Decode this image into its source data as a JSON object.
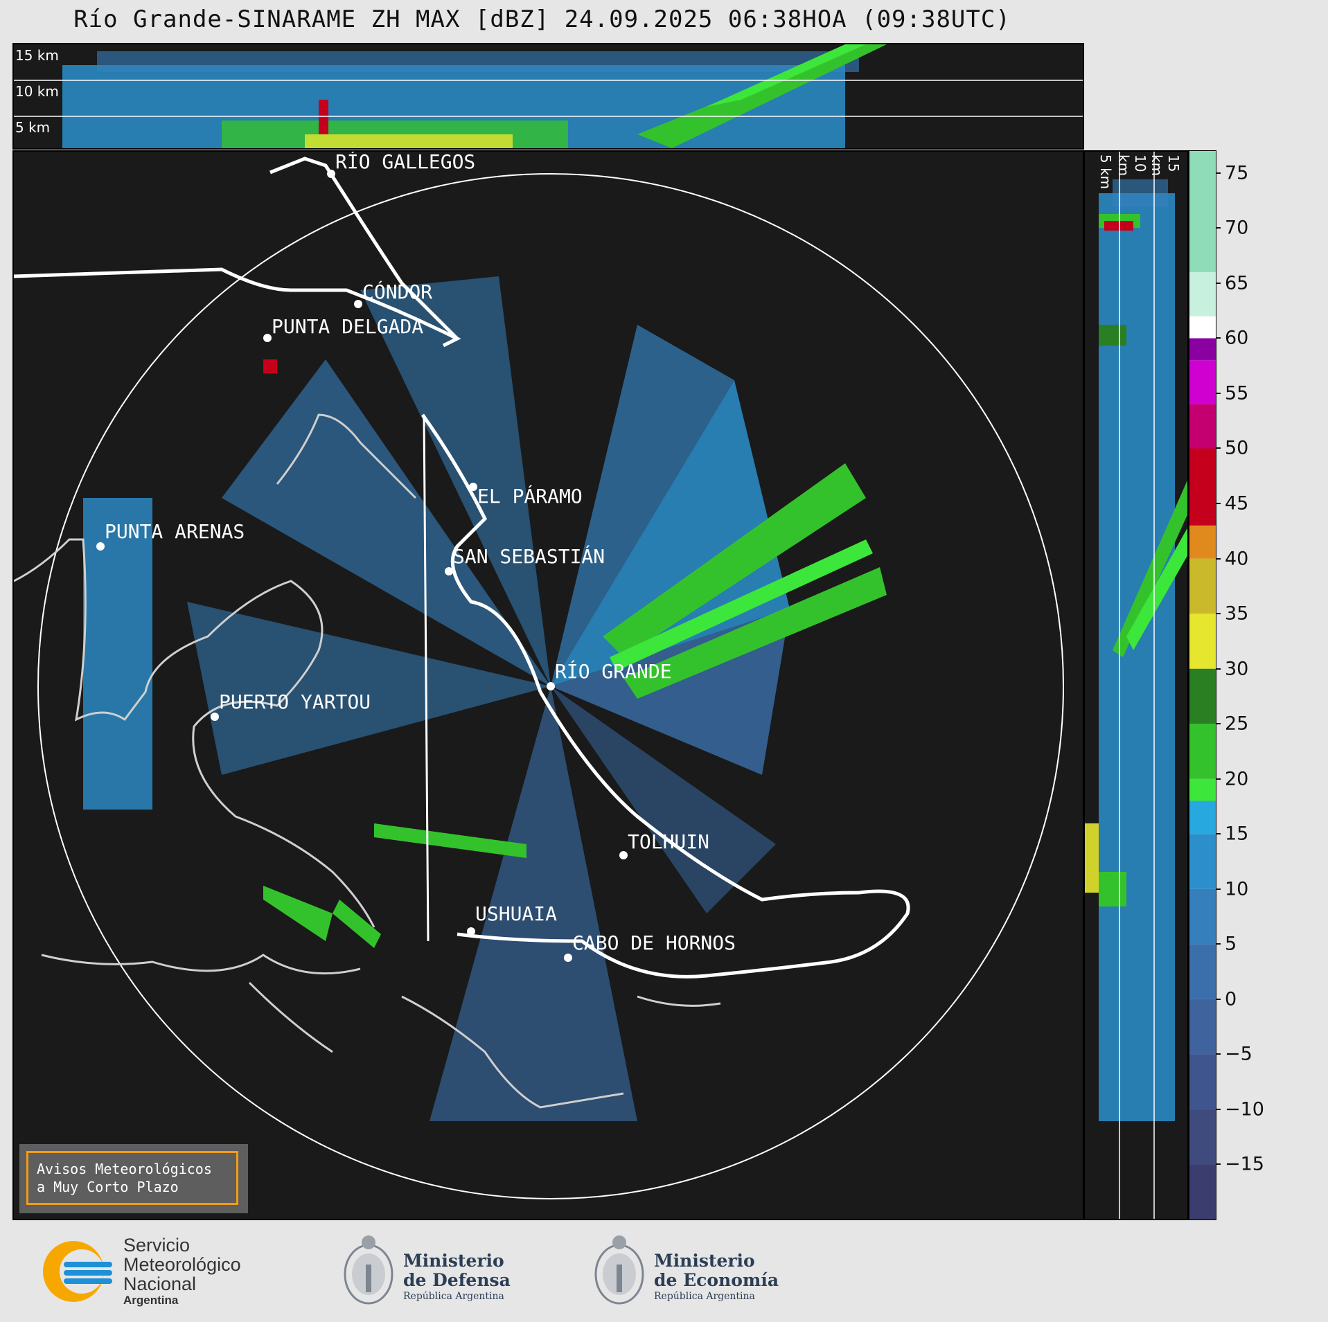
{
  "title": "Río Grande-SINARAME ZH MAX [dBZ] 24.09.2025 06:38HOA (09:38UTC)",
  "top_panel": {
    "km_labels": [
      "15 km",
      "10 km",
      "5 km"
    ]
  },
  "side_panel": {
    "km_labels": [
      "5 km",
      "10 km",
      "15 km"
    ]
  },
  "cities": [
    {
      "name": "RÍO GALLEGOS"
    },
    {
      "name": "CÓNDOR"
    },
    {
      "name": "PUNTA DELGADA"
    },
    {
      "name": "PUNTA ARENAS"
    },
    {
      "name": "EL PÁRAMO"
    },
    {
      "name": "SAN SEBASTIÁN"
    },
    {
      "name": "RÍO GRANDE"
    },
    {
      "name": "PUERTO YARTOU"
    },
    {
      "name": "TOLHUIN"
    },
    {
      "name": "USHUAIA"
    },
    {
      "name": "CABO DE HORNOS"
    }
  ],
  "colorbar": {
    "ticks": [
      "75",
      "70",
      "65",
      "60",
      "55",
      "50",
      "45",
      "40",
      "35",
      "30",
      "25",
      "20",
      "15",
      "10",
      "5",
      "0",
      "−5",
      "−10",
      "−15"
    ],
    "range": [
      -20,
      77
    ],
    "colors": [
      {
        "from": -20,
        "to": -15,
        "color": "#3b3d6e"
      },
      {
        "from": -15,
        "to": -10,
        "color": "#3f4a7d"
      },
      {
        "from": -10,
        "to": -5,
        "color": "#3f558d"
      },
      {
        "from": -5,
        "to": 0,
        "color": "#3f639c"
      },
      {
        "from": 0,
        "to": 5,
        "color": "#3a6fab"
      },
      {
        "from": 5,
        "to": 10,
        "color": "#3580bc"
      },
      {
        "from": 10,
        "to": 15,
        "color": "#2c8fcc"
      },
      {
        "from": 15,
        "to": 18,
        "color": "#27a8de"
      },
      {
        "from": 18,
        "to": 20,
        "color": "#3de63a"
      },
      {
        "from": 20,
        "to": 25,
        "color": "#34c22c"
      },
      {
        "from": 25,
        "to": 30,
        "color": "#2a7f22"
      },
      {
        "from": 30,
        "to": 35,
        "color": "#e6e62e"
      },
      {
        "from": 35,
        "to": 40,
        "color": "#c9b92b"
      },
      {
        "from": 40,
        "to": 43,
        "color": "#e08a1e"
      },
      {
        "from": 43,
        "to": 50,
        "color": "#c4001c"
      },
      {
        "from": 50,
        "to": 54,
        "color": "#c40070"
      },
      {
        "from": 54,
        "to": 58,
        "color": "#d000d0"
      },
      {
        "from": 58,
        "to": 60,
        "color": "#8a00a0"
      },
      {
        "from": 60,
        "to": 62,
        "color": "#ffffff"
      },
      {
        "from": 62,
        "to": 66,
        "color": "#c8f0de"
      },
      {
        "from": 66,
        "to": 77,
        "color": "#8edcb8"
      }
    ]
  },
  "alert": {
    "line1": "Avisos Meteorológicos",
    "line2": "a Muy Corto Plazo"
  },
  "logos": {
    "smn": {
      "line1": "Servicio",
      "line2": "Meteorológico",
      "line3": "Nacional",
      "line4": "Argentina"
    },
    "defensa": {
      "line1": "Ministerio",
      "line2": "de Defensa",
      "line3": "República Argentina"
    },
    "economia": {
      "line1": "Ministerio",
      "line2": "de Economía",
      "line3": "República Argentina"
    }
  }
}
